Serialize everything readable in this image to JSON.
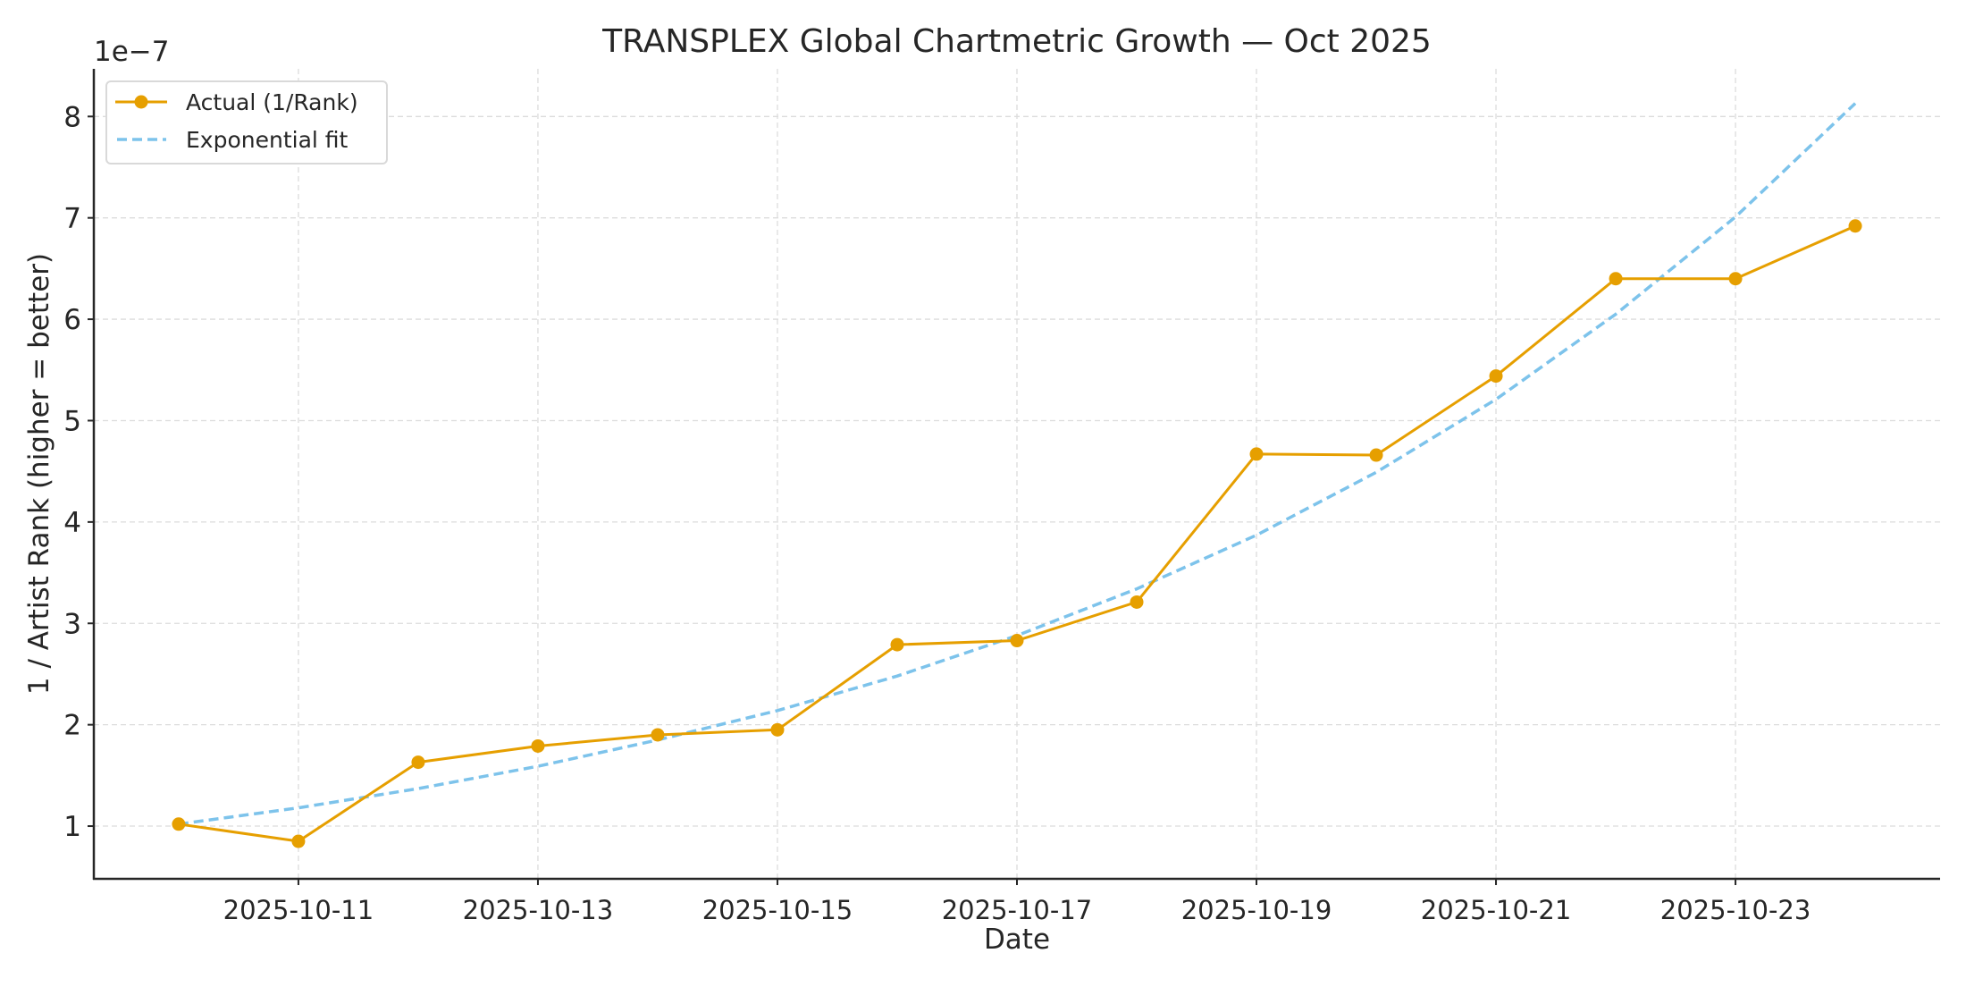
{
  "chart_data": {
    "type": "line",
    "title": "TRANSPLEX Global Chartmetric Growth — Oct 2025",
    "xlabel": "Date",
    "ylabel": "1 / Artist Rank (higher = better)",
    "y_offset_label": "1e−7",
    "y_scale_factor": 1e-07,
    "x": [
      "2025-10-10",
      "2025-10-11",
      "2025-10-12",
      "2025-10-13",
      "2025-10-14",
      "2025-10-15",
      "2025-10-16",
      "2025-10-17",
      "2025-10-18",
      "2025-10-19",
      "2025-10-20",
      "2025-10-21",
      "2025-10-22",
      "2025-10-23",
      "2025-10-24"
    ],
    "x_ticks": [
      "2025-10-11",
      "2025-10-13",
      "2025-10-15",
      "2025-10-17",
      "2025-10-19",
      "2025-10-21",
      "2025-10-23"
    ],
    "y_ticks": [
      1,
      2,
      3,
      4,
      5,
      6,
      7,
      8
    ],
    "xlim": [
      "2025-10-09T07:00",
      "2025-10-24T17:00"
    ],
    "ylim": [
      0.48,
      8.47
    ],
    "grid": true,
    "legend_position": "top-left",
    "series": [
      {
        "name": "Actual (1/Rank)",
        "color": "#E69F00",
        "style": "solid",
        "marker": "circle",
        "values": [
          1.02,
          0.85,
          1.63,
          1.79,
          1.9,
          1.95,
          2.79,
          2.83,
          3.21,
          4.67,
          4.66,
          5.44,
          6.4,
          6.4,
          6.92
        ]
      },
      {
        "name": "Exponential fit",
        "color": "#7DC3EB",
        "style": "dashed",
        "marker": "none",
        "values": [
          1.02,
          1.18,
          1.37,
          1.59,
          1.85,
          2.14,
          2.48,
          2.88,
          3.34,
          3.87,
          4.49,
          5.21,
          6.05,
          7.01,
          8.13
        ]
      }
    ]
  }
}
